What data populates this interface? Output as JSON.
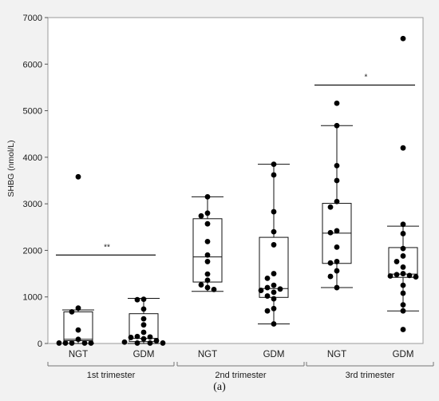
{
  "figure": {
    "caption": "(a)"
  },
  "chart_data": {
    "type": "box",
    "ylabel": "SHBG (nmol/L)",
    "ylim": [
      0,
      7000
    ],
    "yticks": [
      0,
      1000,
      2000,
      3000,
      4000,
      5000,
      6000,
      7000
    ],
    "grid": false,
    "background": "#f2f2f2",
    "groups": [
      {
        "label": "1st trimester",
        "boxes": [
          {
            "label": "NGT",
            "q1": 60,
            "median": 90,
            "q3": 680,
            "whisker_low": 0,
            "whisker_high": 720,
            "points": [
              3580,
              760,
              680,
              290,
              90,
              10,
              10,
              10,
              10,
              10
            ]
          },
          {
            "label": "GDM",
            "q1": 40,
            "median": 110,
            "q3": 640,
            "whisker_low": 0,
            "whisker_high": 970,
            "points": [
              950,
              940,
              740,
              530,
              400,
              240,
              150,
              140,
              130,
              100,
              60,
              30,
              10,
              10,
              10
            ]
          }
        ],
        "significance": "**"
      },
      {
        "label": "2nd trimester",
        "boxes": [
          {
            "label": "NGT",
            "q1": 1320,
            "median": 1860,
            "q3": 2680,
            "whisker_low": 1120,
            "whisker_high": 3150,
            "points": [
              3150,
              2800,
              2740,
              2570,
              2190,
              1900,
              1760,
              1490,
              1360,
              1260,
              1200,
              1160
            ]
          },
          {
            "label": "GDM",
            "q1": 990,
            "median": 1180,
            "q3": 2280,
            "whisker_low": 420,
            "whisker_high": 3850,
            "points": [
              3850,
              3620,
              2830,
              2400,
              2120,
              1500,
              1400,
              1250,
              1200,
              1170,
              1140,
              1100,
              1020,
              960,
              750,
              700,
              420
            ]
          }
        ],
        "significance": ""
      },
      {
        "label": "3rd trimester",
        "boxes": [
          {
            "label": "NGT",
            "q1": 1720,
            "median": 2370,
            "q3": 3010,
            "whisker_low": 1200,
            "whisker_high": 4680,
            "points": [
              5160,
              4680,
              3820,
              3500,
              3050,
              2930,
              2420,
              2380,
              2070,
              1760,
              1730,
              1560,
              1440,
              1200
            ]
          },
          {
            "label": "GDM",
            "q1": 1420,
            "median": 1490,
            "q3": 2060,
            "whisker_low": 700,
            "whisker_high": 2520,
            "points": [
              6550,
              4200,
              2560,
              2360,
              2040,
              1880,
              1760,
              1640,
              1500,
              1480,
              1460,
              1450,
              1430,
              1250,
              1080,
              830,
              700,
              300
            ]
          }
        ],
        "significance": "*"
      }
    ]
  }
}
